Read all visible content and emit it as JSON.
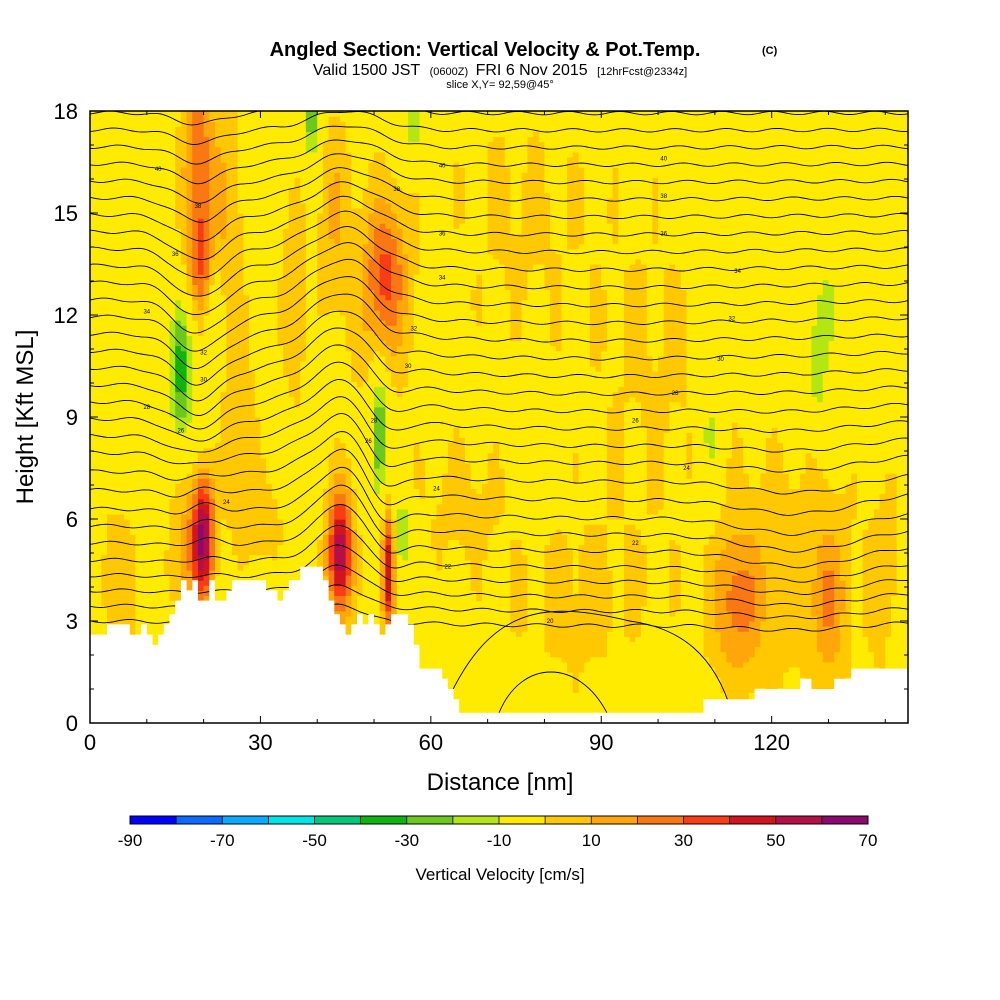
{
  "chart_data": {
    "type": "heatmap",
    "title": "Angled Section: Vertical Velocity & Pot.Temp.",
    "title_units": "(C)",
    "subtitle": {
      "valid_label": "Valid 1500 JST",
      "utc": "(0600Z)",
      "date": "FRI 6 Nov 2015",
      "forecast": "[12hrFcst@2334z]"
    },
    "slice_note": "slice X,Y= 92,59@45°",
    "xlabel": "Distance [nm]",
    "ylabel": "Height [Kft MSL]",
    "xlim": [
      0,
      144
    ],
    "ylim": [
      0,
      18
    ],
    "x_ticks": [
      0,
      30,
      60,
      90,
      120
    ],
    "y_ticks": [
      0,
      3,
      6,
      9,
      12,
      15,
      18
    ],
    "x_tick_labels": [
      "0",
      "30",
      "60",
      "90",
      "120"
    ],
    "y_tick_labels": [
      "0",
      "3",
      "6",
      "9",
      "12",
      "15",
      "18"
    ],
    "colorbar": {
      "title": "Vertical Velocity [cm/s]",
      "min": -90,
      "max": 70,
      "step": 10,
      "labels": [
        "-90",
        "-70",
        "-50",
        "-30",
        "-10",
        "10",
        "30",
        "50",
        "70"
      ],
      "colors": [
        "#0000ff",
        "#0d6aff",
        "#0aabff",
        "#00e5e5",
        "#00c87a",
        "#0fb40f",
        "#6cc81e",
        "#b4e614",
        "#ffeb00",
        "#ffc800",
        "#ffa60a",
        "#fa7814",
        "#fa3c14",
        "#d2141e",
        "#b40f46",
        "#8c0a6e"
      ],
      "neutral_color": "#ffeb00"
    },
    "terrain": [
      [
        0,
        2.6
      ],
      [
        3,
        2.6
      ],
      [
        3,
        2.9
      ],
      [
        7,
        2.9
      ],
      [
        7,
        2.6
      ],
      [
        9,
        2.6
      ],
      [
        9,
        2.9
      ],
      [
        10,
        2.9
      ],
      [
        10,
        2.6
      ],
      [
        11,
        2.6
      ],
      [
        11,
        2.3
      ],
      [
        12,
        2.3
      ],
      [
        12,
        2.6
      ],
      [
        13,
        2.6
      ],
      [
        13,
        2.9
      ],
      [
        14,
        2.9
      ],
      [
        14,
        3.2
      ],
      [
        15,
        3.2
      ],
      [
        15,
        3.6
      ],
      [
        16,
        3.6
      ],
      [
        16,
        4.2
      ],
      [
        17,
        4.2
      ],
      [
        17,
        3.9
      ],
      [
        18,
        3.9
      ],
      [
        18,
        4.2
      ],
      [
        19,
        4.2
      ],
      [
        19,
        3.6
      ],
      [
        21,
        3.6
      ],
      [
        21,
        4.2
      ],
      [
        22,
        4.2
      ],
      [
        22,
        3.6
      ],
      [
        24,
        3.6
      ],
      [
        24,
        3.9
      ],
      [
        25,
        3.9
      ],
      [
        25,
        4.2
      ],
      [
        26,
        4.2
      ],
      [
        26,
        4.2
      ],
      [
        27,
        4.2
      ],
      [
        27,
        4.2
      ],
      [
        31,
        4.2
      ],
      [
        31,
        3.9
      ],
      [
        33,
        3.9
      ],
      [
        33,
        3.6
      ],
      [
        34,
        3.6
      ],
      [
        34,
        3.9
      ],
      [
        35,
        3.9
      ],
      [
        35,
        4.2
      ],
      [
        37,
        4.2
      ],
      [
        37,
        4.6
      ],
      [
        41,
        4.6
      ],
      [
        41,
        4.2
      ],
      [
        42,
        4.2
      ],
      [
        42,
        3.6
      ],
      [
        43,
        3.6
      ],
      [
        43,
        3.2
      ],
      [
        44,
        3.2
      ],
      [
        44,
        2.9
      ],
      [
        45,
        2.9
      ],
      [
        45,
        2.6
      ],
      [
        46,
        2.6
      ],
      [
        46,
        2.9
      ],
      [
        47,
        2.9
      ],
      [
        47,
        3.2
      ],
      [
        48,
        3.2
      ],
      [
        48,
        2.9
      ],
      [
        49,
        2.9
      ],
      [
        49,
        3.2
      ],
      [
        50,
        3.2
      ],
      [
        50,
        2.9
      ],
      [
        51,
        2.9
      ],
      [
        51,
        2.6
      ],
      [
        52,
        2.6
      ],
      [
        52,
        2.9
      ],
      [
        53,
        2.9
      ],
      [
        53,
        3.2
      ],
      [
        56,
        3.2
      ],
      [
        56,
        2.9
      ],
      [
        57,
        2.9
      ],
      [
        57,
        2.3
      ],
      [
        58,
        2.3
      ],
      [
        58,
        1.6
      ],
      [
        60,
        1.6
      ],
      [
        62,
        1.6
      ],
      [
        62,
        1.3
      ],
      [
        63,
        1.3
      ],
      [
        63,
        1.0
      ],
      [
        64,
        1.0
      ],
      [
        64,
        0.7
      ],
      [
        65,
        0.7
      ],
      [
        65,
        0.3
      ],
      [
        68,
        0.3
      ],
      [
        108,
        0.3
      ],
      [
        108,
        0.7
      ],
      [
        117,
        0.7
      ],
      [
        117,
        1.0
      ],
      [
        125,
        1.0
      ],
      [
        125,
        1.3
      ],
      [
        127,
        1.3
      ],
      [
        127,
        1.0
      ],
      [
        131,
        1.0
      ],
      [
        131,
        1.3
      ],
      [
        134,
        1.3
      ],
      [
        134,
        1.6
      ],
      [
        144,
        1.6
      ]
    ],
    "velocity_features": [
      {
        "x": 19,
        "y": 16.5,
        "sx": 1.8,
        "sy": 2.2,
        "v": 40
      },
      {
        "x": 19.5,
        "y": 13.5,
        "sx": 1.5,
        "sy": 1.0,
        "v": 30
      },
      {
        "x": 20,
        "y": 5.5,
        "sx": 1.3,
        "sy": 1.2,
        "v": 70
      },
      {
        "x": 17,
        "y": 5.0,
        "sx": 2.0,
        "sy": 1.5,
        "v": 25
      },
      {
        "x": 26,
        "y": 9.0,
        "sx": 2.0,
        "sy": 2.0,
        "v": 20
      },
      {
        "x": 24,
        "y": 15.0,
        "sx": 2.0,
        "sy": 2.5,
        "v": 20
      },
      {
        "x": 36,
        "y": 12.5,
        "sx": 1.5,
        "sy": 2.0,
        "v": 20
      },
      {
        "x": 43,
        "y": 15.0,
        "sx": 2.0,
        "sy": 2.0,
        "v": 20
      },
      {
        "x": 44,
        "y": 5.0,
        "sx": 1.5,
        "sy": 1.3,
        "v": 70
      },
      {
        "x": 52.5,
        "y": 4.5,
        "sx": 0.8,
        "sy": 1.3,
        "v": 60
      },
      {
        "x": 52,
        "y": 13.2,
        "sx": 2.5,
        "sy": 1.5,
        "v": 35
      },
      {
        "x": 51,
        "y": 12.0,
        "sx": 4.0,
        "sy": 2.5,
        "v": 15
      },
      {
        "x": 30,
        "y": 6.0,
        "sx": 3.0,
        "sy": 1.0,
        "v": 15
      },
      {
        "x": 114,
        "y": 3.5,
        "sx": 3.0,
        "sy": 1.5,
        "v": 30
      },
      {
        "x": 130,
        "y": 3.5,
        "sx": 2.0,
        "sy": 1.5,
        "v": 25
      },
      {
        "x": 124,
        "y": 4.5,
        "sx": 9.0,
        "sy": 2.5,
        "v": 15
      },
      {
        "x": 85,
        "y": 3.5,
        "sx": 10.0,
        "sy": 2.0,
        "v": 12
      },
      {
        "x": 5,
        "y": 4.0,
        "sx": 3.0,
        "sy": 2.0,
        "v": 15
      },
      {
        "x": 140,
        "y": 4.0,
        "sx": 2.0,
        "sy": 2.0,
        "v": 15
      },
      {
        "x": 65,
        "y": 6.5,
        "sx": 6.0,
        "sy": 1.5,
        "v": 12
      },
      {
        "x": 100,
        "y": 10.5,
        "sx": 10.0,
        "sy": 4.0,
        "v": 11
      },
      {
        "x": 75,
        "y": 15.0,
        "sx": 10.0,
        "sy": 3.0,
        "v": 11
      },
      {
        "x": 16,
        "y": 10.3,
        "sx": 1.5,
        "sy": 1.5,
        "v": -35
      },
      {
        "x": 39,
        "y": 18.0,
        "sx": 1.0,
        "sy": 1.0,
        "v": -30
      },
      {
        "x": 51,
        "y": 8.5,
        "sx": 1.2,
        "sy": 1.5,
        "v": -35
      },
      {
        "x": 55,
        "y": 5.5,
        "sx": 1.0,
        "sy": 0.8,
        "v": -25
      },
      {
        "x": 57,
        "y": 17.8,
        "sx": 1.5,
        "sy": 0.8,
        "v": -20
      },
      {
        "x": 109,
        "y": 8.5,
        "sx": 1.5,
        "sy": 1.5,
        "v": -15
      },
      {
        "x": 130,
        "y": 12.0,
        "sx": 2.0,
        "sy": 1.5,
        "v": -15
      },
      {
        "x": 128,
        "y": 10.0,
        "sx": 1.0,
        "sy": 1.0,
        "v": -12
      },
      {
        "x": 142,
        "y": 2.0,
        "sx": 0.8,
        "sy": 0.8,
        "v": -15
      },
      {
        "x": 22,
        "y": 11.5,
        "sx": 1.0,
        "sy": 1.5,
        "v": -15
      }
    ],
    "theta_contours": {
      "base": [
        3.0,
        3.45,
        3.9,
        4.35,
        4.8,
        5.3,
        5.8,
        6.3,
        6.85,
        7.4,
        7.95,
        8.45,
        8.95,
        9.45,
        9.95,
        10.45,
        10.95,
        11.45,
        11.95,
        12.45,
        12.95,
        13.45,
        13.95,
        14.45,
        14.95,
        15.45,
        15.95,
        16.45,
        16.95,
        17.45,
        17.95
      ],
      "bumps": [
        {
          "x": 19,
          "y": 12.0,
          "ax": 4,
          "ay": 4,
          "a": -1.0
        },
        {
          "x": 45,
          "y": 11.0,
          "ax": 6,
          "ay": 5,
          "a": 1.3
        },
        {
          "x": 52,
          "y": 8.0,
          "ax": 3,
          "ay": 2.5,
          "a": -0.8
        },
        {
          "x": 44,
          "y": 5.5,
          "ax": 3,
          "ay": 1.5,
          "a": 0.6
        },
        {
          "x": 20,
          "y": 6.5,
          "ax": 3,
          "ay": 1.5,
          "a": 0.5
        },
        {
          "x": 90,
          "y": 8.0,
          "ax": 30,
          "ay": 4,
          "a": -0.3
        },
        {
          "x": 125,
          "y": 6.0,
          "ax": 10,
          "ay": 2,
          "a": -0.6
        }
      ],
      "labels": [
        {
          "x": 12,
          "y": 16.3,
          "t": "40"
        },
        {
          "x": 19,
          "y": 15.2,
          "t": "38"
        },
        {
          "x": 15,
          "y": 13.8,
          "t": "36"
        },
        {
          "x": 10,
          "y": 12.1,
          "t": "34"
        },
        {
          "x": 20,
          "y": 10.9,
          "t": "32"
        },
        {
          "x": 20,
          "y": 10.1,
          "t": "30"
        },
        {
          "x": 10,
          "y": 9.3,
          "t": "28"
        },
        {
          "x": 16,
          "y": 8.6,
          "t": "26"
        },
        {
          "x": 24,
          "y": 6.5,
          "t": "24"
        },
        {
          "x": 62,
          "y": 16.4,
          "t": "40"
        },
        {
          "x": 54,
          "y": 15.7,
          "t": "38"
        },
        {
          "x": 62,
          "y": 14.4,
          "t": "36"
        },
        {
          "x": 62,
          "y": 13.1,
          "t": "34"
        },
        {
          "x": 57,
          "y": 11.6,
          "t": "32"
        },
        {
          "x": 56,
          "y": 10.5,
          "t": "30"
        },
        {
          "x": 50,
          "y": 8.9,
          "t": "28"
        },
        {
          "x": 49,
          "y": 8.3,
          "t": "26"
        },
        {
          "x": 61,
          "y": 6.9,
          "t": "24"
        },
        {
          "x": 63,
          "y": 4.6,
          "t": "22"
        },
        {
          "x": 81,
          "y": 3.0,
          "t": "20"
        },
        {
          "x": 101,
          "y": 16.6,
          "t": "40"
        },
        {
          "x": 101,
          "y": 15.5,
          "t": "38"
        },
        {
          "x": 101,
          "y": 14.4,
          "t": "36"
        },
        {
          "x": 114,
          "y": 13.3,
          "t": "34"
        },
        {
          "x": 113,
          "y": 11.9,
          "t": "32"
        },
        {
          "x": 111,
          "y": 10.7,
          "t": "30"
        },
        {
          "x": 103,
          "y": 9.7,
          "t": "28"
        },
        {
          "x": 96,
          "y": 8.9,
          "t": "26"
        },
        {
          "x": 105,
          "y": 7.5,
          "t": "24"
        },
        {
          "x": 96,
          "y": 5.3,
          "t": "22"
        }
      ]
    },
    "grid": false
  }
}
